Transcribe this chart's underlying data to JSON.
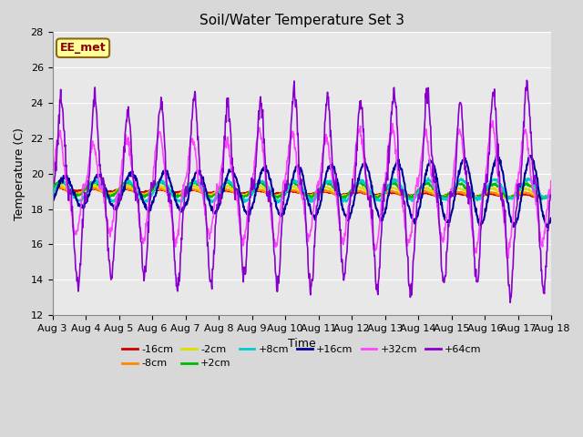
{
  "title": "Soil/Water Temperature Set 3",
  "xlabel": "Time",
  "ylabel": "Temperature (C)",
  "ylim": [
    12,
    28
  ],
  "yticks": [
    12,
    14,
    16,
    18,
    20,
    22,
    24,
    26,
    28
  ],
  "n_days": 15,
  "n_points": 1080,
  "xtick_labels": [
    "Aug 3",
    "Aug 4",
    "Aug 5",
    "Aug 6",
    "Aug 7",
    "Aug 8",
    "Aug 9",
    "Aug 10",
    "Aug 11",
    "Aug 12",
    "Aug 13",
    "Aug 14",
    "Aug 15",
    "Aug 16",
    "Aug 17",
    "Aug 18"
  ],
  "series_order": [
    "-16cm",
    "-8cm",
    "-2cm",
    "+2cm",
    "+8cm",
    "+16cm",
    "+32cm",
    "+64cm"
  ],
  "legend_row1": [
    "-16cm",
    "-8cm",
    "-2cm",
    "+2cm",
    "+8cm",
    "+16cm"
  ],
  "legend_row2": [
    "+32cm",
    "+64cm"
  ],
  "colors": {
    "-16cm": "#cc0000",
    "-8cm": "#ff8800",
    "-2cm": "#dddd00",
    "+2cm": "#00bb00",
    "+8cm": "#00cccc",
    "+16cm": "#000099",
    "+32cm": "#ff44ff",
    "+64cm": "#8800cc"
  },
  "lw": {
    "-16cm": 1.5,
    "-8cm": 1.5,
    "-2cm": 1.5,
    "+2cm": 1.5,
    "+8cm": 1.5,
    "+16cm": 1.5,
    "+32cm": 1.2,
    "+64cm": 1.2
  },
  "base_temp": 19.0,
  "watermark": "EE_met",
  "watermark_color": "#8b0000",
  "watermark_bg": "#ffff99",
  "watermark_edge": "#8b6914",
  "plot_bg": "#e8e8e8",
  "fig_bg": "#d8d8d8",
  "grid_color": "#ffffff",
  "title_fontsize": 11,
  "label_fontsize": 9,
  "tick_fontsize": 8,
  "legend_fontsize": 8
}
